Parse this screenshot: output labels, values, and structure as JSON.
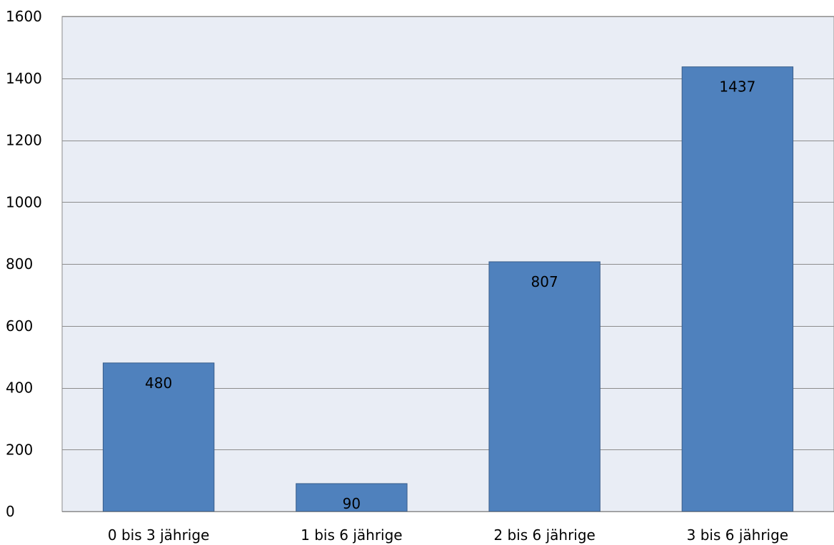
{
  "chart_data": {
    "type": "bar",
    "categories": [
      "0 bis 3 jährige",
      "1 bis 6 jährige",
      "2 bis 6 jährige",
      "3 bis 6 jährige"
    ],
    "values": [
      480,
      90,
      807,
      1437
    ],
    "data_labels": [
      "480",
      "90",
      "807",
      "1437"
    ],
    "ylim": [
      0,
      1600
    ],
    "yticks": [
      0,
      200,
      400,
      600,
      800,
      1000,
      1200,
      1400,
      1600
    ],
    "grid": true,
    "legend": "none",
    "colors": {
      "bar": "#4f81bd",
      "bar_border": "#385d8a",
      "plot_background": "#e9edf5",
      "gridline": "#8c8c8c"
    }
  }
}
